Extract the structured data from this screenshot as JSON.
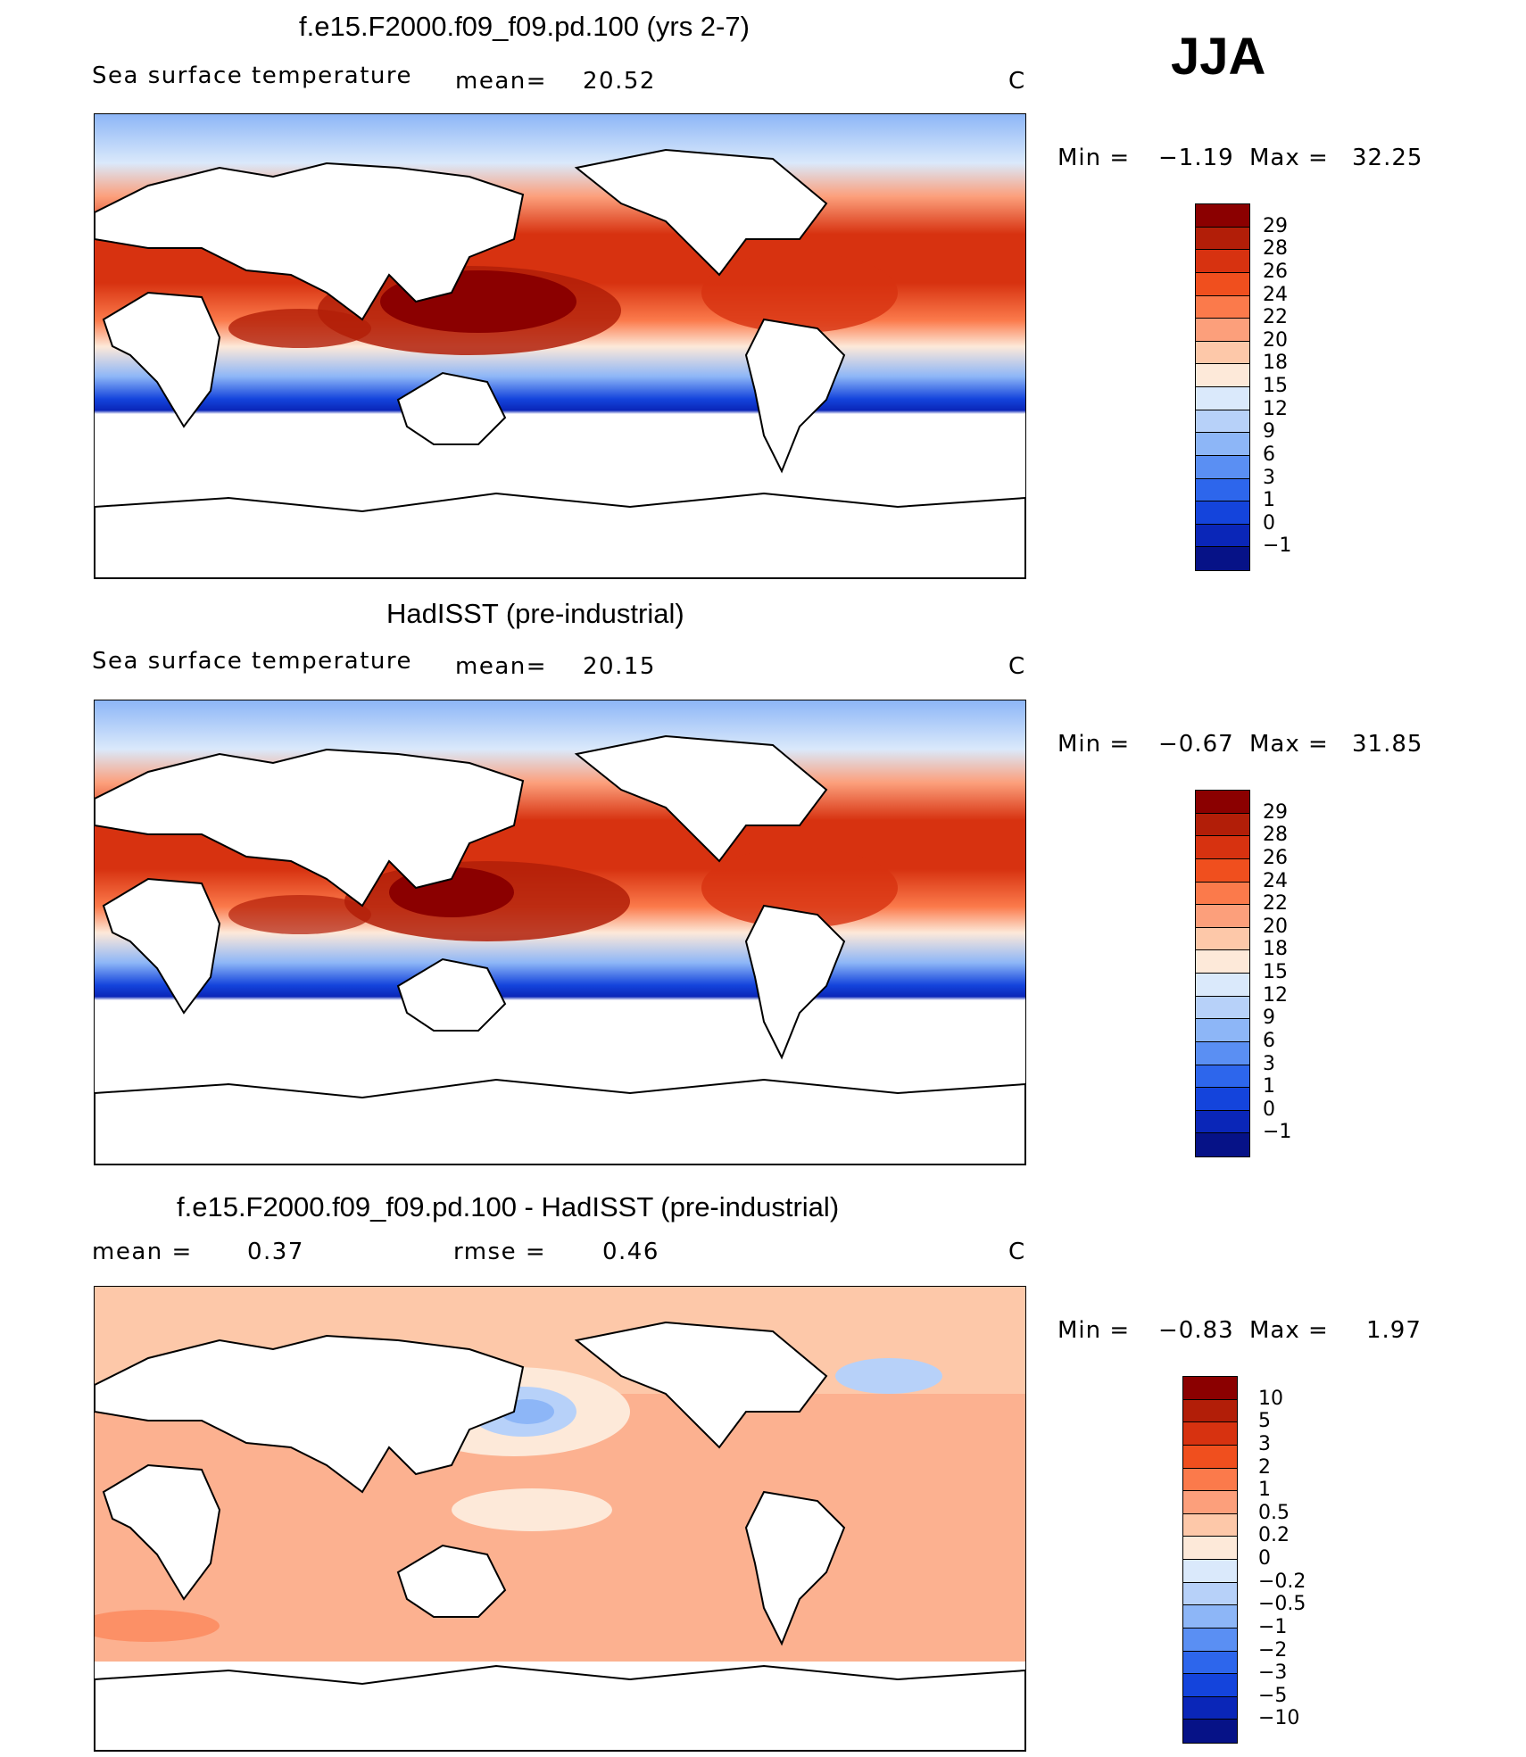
{
  "season": "JJA",
  "panels": [
    {
      "title": "f.e15.F2000.f09_f09.pd.100 (yrs 2-7)",
      "left_label": "Sea surface temperature",
      "stat1": "mean=",
      "stat1_value": "20.52",
      "stat2": "",
      "stat2_value": "",
      "units": "C",
      "min_label": "Min =",
      "min_value": "−1.19",
      "max_label": "Max =",
      "max_value": "32.25",
      "colorbar": {
        "labels": [
          "29",
          "28",
          "26",
          "24",
          "22",
          "20",
          "18",
          "15",
          "12",
          "9",
          "6",
          "3",
          "1",
          "0",
          "−1"
        ],
        "colors": [
          "#8b0000",
          "#b21e08",
          "#d73210",
          "#f04f1e",
          "#fb7a4b",
          "#fc9f7b",
          "#fdc8a9",
          "#fde9d9",
          "#dae9fb",
          "#b7d1f9",
          "#8db6f7",
          "#5a8ff3",
          "#2d66ec",
          "#1444dc",
          "#0a26b8",
          "#061287"
        ]
      }
    },
    {
      "title": "HadISST (pre-industrial)",
      "left_label": "Sea surface temperature",
      "stat1": "mean=",
      "stat1_value": "20.15",
      "stat2": "",
      "stat2_value": "",
      "units": "C",
      "min_label": "Min =",
      "min_value": "−0.67",
      "max_label": "Max =",
      "max_value": "31.85",
      "colorbar": {
        "labels": [
          "29",
          "28",
          "26",
          "24",
          "22",
          "20",
          "18",
          "15",
          "12",
          "9",
          "6",
          "3",
          "1",
          "0",
          "−1"
        ],
        "colors": [
          "#8b0000",
          "#b21e08",
          "#d73210",
          "#f04f1e",
          "#fb7a4b",
          "#fc9f7b",
          "#fdc8a9",
          "#fde9d9",
          "#dae9fb",
          "#b7d1f9",
          "#8db6f7",
          "#5a8ff3",
          "#2d66ec",
          "#1444dc",
          "#0a26b8",
          "#061287"
        ]
      }
    },
    {
      "title": "f.e15.F2000.f09_f09.pd.100 - HadISST (pre-industrial)",
      "left_label": "",
      "stat1": "mean =",
      "stat1_value": "0.37",
      "stat2": "rmse =",
      "stat2_value": "0.46",
      "units": "C",
      "min_label": "Min =",
      "min_value": "−0.83",
      "max_label": "Max =",
      "max_value": "1.97",
      "colorbar": {
        "labels": [
          "10",
          "5",
          "3",
          "2",
          "1",
          "0.5",
          "0.2",
          "0",
          "−0.2",
          "−0.5",
          "−1",
          "−2",
          "−3",
          "−5",
          "−10"
        ],
        "colors": [
          "#8b0000",
          "#b21e08",
          "#d73210",
          "#f04f1e",
          "#fb7a4b",
          "#fc9f7b",
          "#fdc8a9",
          "#fde9d9",
          "#dae9fb",
          "#b7d1f9",
          "#8db6f7",
          "#5a8ff3",
          "#2d66ec",
          "#1444dc",
          "#0a26b8",
          "#061287"
        ]
      }
    }
  ]
}
